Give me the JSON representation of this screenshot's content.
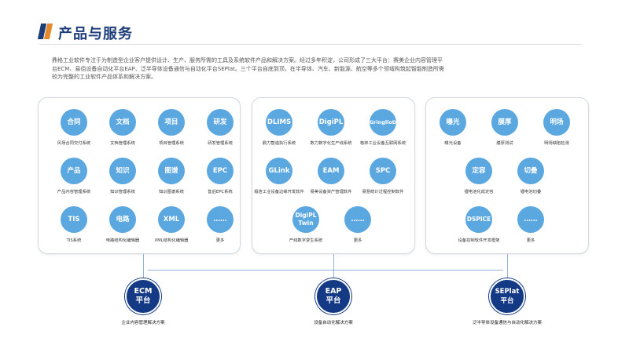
{
  "header": {
    "title": "产品与服务"
  },
  "description": "鼎格工业软件专注于为制造型企业客户提供设计、生产、服务所需的工具及系统软件产品和解决方案。经过多年积淀，公司形成了三大平台：赛美企业内容管理平台ECM、易佰设备自动化平台EAP、泛半导体设备通信与自动化平台SEPlat。三个平台自底到顶，在半导体、汽车、新能源、航空等多个领域构筑起智能制造所需较为完整的工业软件产品体系和解决方案。",
  "panels": [
    {
      "items": [
        {
          "icon": "合同",
          "caption": "风场合同交付系统"
        },
        {
          "icon": "文档",
          "caption": "文档管理系统"
        },
        {
          "icon": "项目",
          "caption": "项目管理系统"
        },
        {
          "icon": "研发",
          "caption": "研发管理系统"
        },
        {
          "icon": "产品",
          "caption": "产品内容管理系统"
        },
        {
          "icon": "知识",
          "caption": "知识管理系统"
        },
        {
          "icon": "图谱",
          "caption": "知识图谱系统"
        },
        {
          "icon": "EPC",
          "caption": "售后EPC系统"
        },
        {
          "icon": "TIS",
          "caption": "TIS系统"
        },
        {
          "icon": "电路",
          "caption": "电路结构化编辑器"
        },
        {
          "icon": "XML",
          "caption": "XML结构化编辑器"
        },
        {
          "icon": "……",
          "caption": "更多"
        }
      ]
    },
    {
      "items": [
        {
          "icon": "DLIMS",
          "caption": "鼎力智造执行系统"
        },
        {
          "icon": "DigiPL",
          "caption": "数力数字化生产线系统"
        },
        {
          "icon": "GringlloD",
          "caption": "格林工业设备互联网系统"
        },
        {
          "icon": "GLink",
          "caption": "极连工业设备边缘开发软件"
        },
        {
          "icon": "EAM",
          "caption": "易美设备资产管理软件"
        },
        {
          "icon": "SPC",
          "caption": "易慧统计过程控制软件"
        },
        {
          "icon": "DigiPL Twin",
          "caption": "产线数字孪生系统"
        },
        {
          "icon": "……",
          "caption": "更多"
        }
      ]
    },
    {
      "items": [
        {
          "icon": "曝光",
          "caption": "曝光设备"
        },
        {
          "icon": "膜厚",
          "caption": "膜厚测试"
        },
        {
          "icon": "明场",
          "caption": "明场缺陷检测"
        },
        {
          "icon": "定容",
          "caption": "锂电池化成定容"
        },
        {
          "icon": "切叠",
          "caption": "锂电池切叠"
        },
        {
          "icon": "DSPICE",
          "caption": "设备控制软件开发框架"
        },
        {
          "icon": "……",
          "caption": "更多"
        }
      ]
    }
  ],
  "platforms": [
    {
      "line1": "ECM",
      "line2": "平台",
      "caption": "企业内容管理解决方案"
    },
    {
      "line1": "EAP",
      "line2": "平台",
      "caption": "设备自动化解决方案"
    },
    {
      "line1": "SEPlat",
      "line2": "平台",
      "caption": "泛半导体设备通信与自动化解决方案"
    }
  ],
  "colors": {
    "brand_navy": "#143a85",
    "accent_orange": "#e38b2c",
    "icon_blue": "#5ba7e0"
  }
}
